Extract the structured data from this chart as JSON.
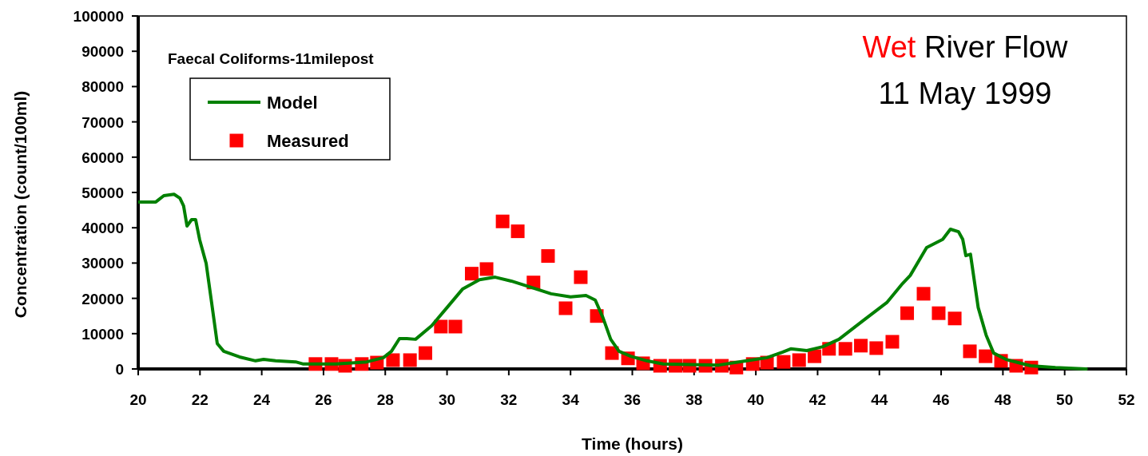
{
  "chart_data": {
    "type": "line",
    "title": "Faecal Coliforms-11milepost",
    "xlabel": "Time (hours)",
    "ylabel": "Concentration (count/100ml)",
    "annotations": [
      "Wet River Flow",
      "11 May 1999"
    ],
    "xlim": [
      20,
      52
    ],
    "xticks": [
      20,
      22,
      24,
      26,
      28,
      30,
      32,
      34,
      36,
      38,
      40,
      42,
      44,
      46,
      48,
      50,
      52
    ],
    "ylim": [
      0,
      100000
    ],
    "yticks": [
      0,
      10000,
      20000,
      30000,
      40000,
      50000,
      60000,
      70000,
      80000,
      90000,
      100000
    ],
    "grid": false,
    "legend": "top left",
    "series": [
      {
        "name": "Model",
        "color": "#008000",
        "marker": "none",
        "line_style": "solid",
        "x": [
          20,
          20.57,
          20.83,
          21.16,
          21.35,
          21.47,
          21.58,
          21.73,
          21.86,
          21.99,
          22.2,
          22.38,
          22.56,
          22.77,
          23.28,
          23.8,
          24.06,
          24.45,
          25.1,
          25.35,
          26.4,
          27.4,
          27.94,
          28.2,
          28.46,
          28.7,
          28.98,
          29.5,
          30,
          30.5,
          31.05,
          31.56,
          32.08,
          32.73,
          33.37,
          34,
          34.5,
          34.8,
          35.05,
          35.3,
          35.57,
          35.95,
          36.47,
          37,
          38.8,
          39.7,
          40.36,
          40.87,
          41.13,
          41.65,
          42.17,
          42.69,
          43.46,
          44.24,
          44.75,
          45,
          45.53,
          46.05,
          46.3,
          46.56,
          46.7,
          46.8,
          46.95,
          47.2,
          47.46,
          47.7,
          48.1,
          48.9,
          49.7,
          50.7
        ],
        "values": [
          47300,
          47300,
          49100,
          49500,
          48400,
          46200,
          40500,
          42300,
          42300,
          36600,
          29900,
          18600,
          7200,
          5000,
          3400,
          2300,
          2700,
          2300,
          2000,
          1400,
          1400,
          2000,
          3200,
          5000,
          8600,
          8600,
          8400,
          12200,
          17400,
          22600,
          25300,
          26000,
          24900,
          23100,
          21300,
          20400,
          20800,
          19500,
          14500,
          8400,
          5000,
          3600,
          2300,
          1400,
          1100,
          2300,
          3200,
          4800,
          5700,
          5200,
          6300,
          8400,
          13600,
          18800,
          24200,
          26500,
          34400,
          36700,
          39600,
          38900,
          36700,
          32100,
          32500,
          17400,
          9500,
          4500,
          2700,
          900,
          400,
          0
        ]
      },
      {
        "name": "Measured",
        "type": "scatter",
        "color": "#ff0000",
        "marker": "square",
        "x": [
          25.74,
          26.26,
          26.7,
          27.24,
          27.73,
          28.25,
          28.8,
          29.3,
          29.8,
          30.27,
          30.8,
          31.28,
          31.8,
          32.29,
          32.8,
          33.27,
          33.84,
          34.33,
          34.85,
          35.34,
          35.86,
          36.35,
          36.9,
          37.4,
          37.85,
          38.37,
          38.9,
          39.37,
          39.9,
          40.36,
          40.9,
          41.4,
          41.9,
          42.37,
          42.9,
          43.4,
          43.9,
          44.42,
          44.9,
          45.43,
          45.92,
          46.44,
          46.93,
          47.44,
          47.94,
          48.43,
          48.92
        ],
        "values": [
          1400,
          1400,
          900,
          1400,
          1800,
          2500,
          2500,
          4500,
          12000,
          12000,
          27000,
          28300,
          41800,
          39000,
          24500,
          32000,
          17200,
          26000,
          15000,
          4500,
          3000,
          1600,
          900,
          900,
          900,
          900,
          900,
          400,
          1400,
          1800,
          2000,
          2500,
          3600,
          5700,
          5700,
          6600,
          5900,
          7700,
          15800,
          21300,
          15800,
          14300,
          5000,
          3600,
          2300,
          900,
          400
        ]
      }
    ]
  }
}
